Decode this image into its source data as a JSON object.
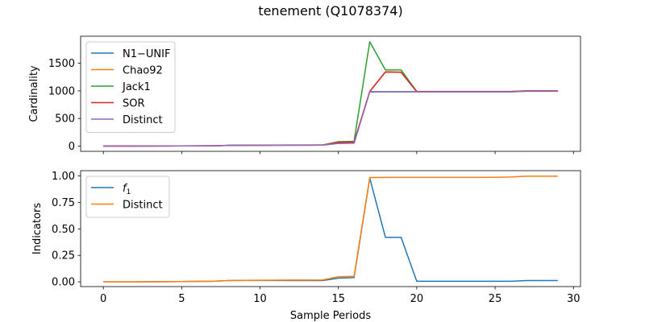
{
  "title": "tenement (Q1078374)",
  "colors": {
    "blue": "#1f77b4",
    "orange": "#ff7f0e",
    "green": "#2ca02c",
    "red": "#d62728",
    "purple": "#9467bd"
  },
  "chart_data": [
    {
      "type": "line",
      "ylabel": "Cardinality",
      "xlabel": "",
      "xlim": [
        -1.45,
        30.45
      ],
      "ylim": [
        -95,
        1990
      ],
      "xticks": [
        0,
        5,
        10,
        15,
        20,
        25,
        30
      ],
      "show_xtick_labels": false,
      "yticks": [
        0,
        500,
        1000,
        1500
      ],
      "legend": "top-left",
      "grid": false,
      "x": [
        0,
        1,
        2,
        3,
        4,
        5,
        6,
        7,
        8,
        9,
        10,
        11,
        12,
        13,
        14,
        15,
        16,
        17,
        18,
        19,
        20,
        21,
        22,
        23,
        24,
        25,
        26,
        27,
        28,
        29
      ],
      "series": [
        {
          "name": "N1−UNIF",
          "color": "#1f77b4",
          "values": [
            0,
            0,
            0,
            1,
            2,
            3,
            4,
            5,
            12,
            14,
            15,
            16,
            17,
            17,
            18,
            50,
            55,
            985,
            985,
            985,
            985,
            985,
            985,
            985,
            985,
            985,
            985,
            995,
            995,
            995
          ]
        },
        {
          "name": "Chao92",
          "color": "#ff7f0e",
          "values": [
            0,
            0,
            0,
            1,
            2,
            3,
            4,
            5,
            12,
            14,
            15,
            16,
            17,
            17,
            18,
            60,
            65,
            985,
            1340,
            1335,
            985,
            985,
            985,
            985,
            985,
            985,
            985,
            998,
            998,
            998
          ]
        },
        {
          "name": "Jack1",
          "color": "#2ca02c",
          "values": [
            1,
            1,
            1,
            2,
            3,
            4,
            5,
            6,
            14,
            16,
            17,
            18,
            19,
            19,
            20,
            80,
            85,
            1890,
            1380,
            1380,
            990,
            990,
            990,
            990,
            990,
            990,
            990,
            1000,
            1000,
            1000
          ]
        },
        {
          "name": "SOR",
          "color": "#d62728",
          "values": [
            1,
            1,
            1,
            2,
            3,
            4,
            5,
            6,
            13,
            15,
            16,
            17,
            18,
            18,
            19,
            70,
            75,
            990,
            1345,
            1340,
            987,
            987,
            987,
            987,
            987,
            987,
            987,
            1000,
            1000,
            1000
          ]
        },
        {
          "name": "Distinct",
          "color": "#9467bd",
          "values": [
            0,
            0,
            0,
            1,
            2,
            3,
            4,
            5,
            12,
            14,
            15,
            16,
            17,
            17,
            18,
            48,
            52,
            980,
            982,
            982,
            982,
            982,
            982,
            982,
            982,
            982,
            982,
            993,
            993,
            993
          ]
        }
      ]
    },
    {
      "type": "line",
      "ylabel": "Indicators",
      "xlabel": "Sample Periods",
      "xlim": [
        -1.45,
        30.45
      ],
      "ylim": [
        -0.045,
        1.05
      ],
      "xticks": [
        0,
        5,
        10,
        15,
        20,
        25,
        30
      ],
      "show_xtick_labels": true,
      "yticks": [
        0.0,
        0.25,
        0.5,
        0.75,
        1.0
      ],
      "ytick_labels": [
        "0.00",
        "0.25",
        "0.50",
        "0.75",
        "1.00"
      ],
      "legend": "top-left",
      "grid": false,
      "x": [
        0,
        1,
        2,
        3,
        4,
        5,
        6,
        7,
        8,
        9,
        10,
        11,
        12,
        13,
        14,
        15,
        16,
        17,
        18,
        19,
        20,
        21,
        22,
        23,
        24,
        25,
        26,
        27,
        28,
        29
      ],
      "series": [
        {
          "name": "f",
          "subscript": "1",
          "color": "#1f77b4",
          "values": [
            0.0,
            0.0,
            0.0,
            0.001,
            0.002,
            0.003,
            0.004,
            0.005,
            0.012,
            0.013,
            0.013,
            0.013,
            0.012,
            0.012,
            0.012,
            0.035,
            0.04,
            0.98,
            0.42,
            0.42,
            0.005,
            0.005,
            0.005,
            0.005,
            0.005,
            0.005,
            0.005,
            0.012,
            0.012,
            0.012
          ]
        },
        {
          "name": "Distinct",
          "color": "#ff7f0e",
          "values": [
            0.0,
            0.0,
            0.0,
            0.001,
            0.002,
            0.003,
            0.004,
            0.005,
            0.012,
            0.014,
            0.015,
            0.016,
            0.017,
            0.017,
            0.018,
            0.048,
            0.052,
            0.984,
            0.986,
            0.986,
            0.986,
            0.986,
            0.986,
            0.986,
            0.986,
            0.987,
            0.99,
            0.998,
            0.998,
            0.998
          ]
        }
      ]
    }
  ]
}
